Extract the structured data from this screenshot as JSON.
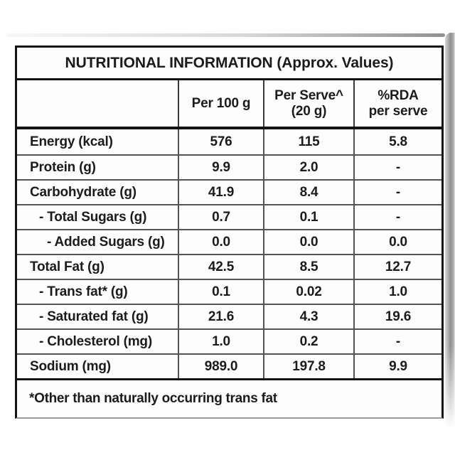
{
  "title": "NUTRITIONAL INFORMATION (Approx. Values)",
  "header": {
    "col1": "",
    "col2": "Per 100 g",
    "col3_line1": "Per Serve^",
    "col3_line2": "(20 g)",
    "col4_line1": "%RDA",
    "col4_line2": "per serve"
  },
  "rows": [
    {
      "label": "Energy (kcal)",
      "per_100g": "576",
      "per_serve": "115",
      "rda_per_serve": "5.8"
    },
    {
      "label": "Protein (g)",
      "per_100g": "9.9",
      "per_serve": "2.0",
      "rda_per_serve": "-"
    },
    {
      "label": "Carbohydrate (g)",
      "per_100g": "41.9",
      "per_serve": "8.4",
      "rda_per_serve": "-"
    },
    {
      "label": "- Total Sugars (g)",
      "per_100g": "0.7",
      "per_serve": "0.1",
      "rda_per_serve": "-"
    },
    {
      "label": "- Added Sugars (g)",
      "per_100g": "0.0",
      "per_serve": "0.0",
      "rda_per_serve": "0.0"
    },
    {
      "label": "Total Fat (g)",
      "per_100g": "42.5",
      "per_serve": "8.5",
      "rda_per_serve": "12.7"
    },
    {
      "label": "- Trans fat* (g)",
      "per_100g": "0.1",
      "per_serve": "0.02",
      "rda_per_serve": "1.0"
    },
    {
      "label": "- Saturated fat (g)",
      "per_100g": "21.6",
      "per_serve": "4.3",
      "rda_per_serve": "19.6"
    },
    {
      "label": "- Cholesterol (mg)",
      "per_100g": "1.0",
      "per_serve": "0.2",
      "rda_per_serve": "-"
    },
    {
      "label": "Sodium (mg)",
      "per_100g": "989.0",
      "per_serve": "197.8",
      "rda_per_serve": "9.9"
    }
  ],
  "footnote": "*Other than naturally occurring trans fat",
  "colors": {
    "text": "#1b1b1b",
    "table_border": "#141414",
    "grid_line": "#545454",
    "table_background": "#fdfdfd",
    "edge_shadow": "#8e8e8e"
  }
}
